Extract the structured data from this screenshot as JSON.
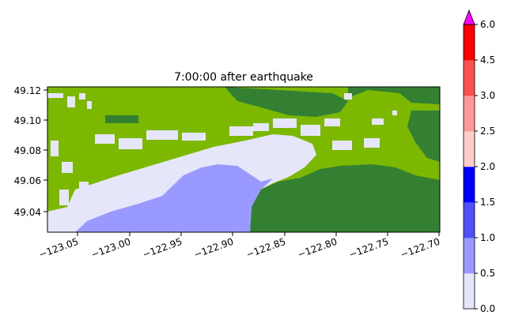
{
  "chart_data": {
    "type": "heatmap",
    "title": "7:00:00 after earthquake",
    "xlabel": "",
    "ylabel": "",
    "xlim": [
      -123.08,
      -122.7
    ],
    "ylim": [
      49.027,
      49.122
    ],
    "x_ticks": [
      -123.05,
      -123.0,
      -122.95,
      -122.9,
      -122.85,
      -122.8,
      -122.75,
      -122.7
    ],
    "x_tick_labels": [
      "−123.05",
      "−123.00",
      "−122.95",
      "−122.90",
      "−122.85",
      "−122.80",
      "−122.75",
      "−122.70"
    ],
    "y_ticks": [
      49.04,
      49.06,
      49.08,
      49.1,
      49.12
    ],
    "y_tick_labels": [
      "49.04",
      "49.06",
      "49.08",
      "49.10",
      "49.12"
    ],
    "colorbar": {
      "levels": [
        0.0,
        0.5,
        1.0,
        1.5,
        2.0,
        2.5,
        3.0,
        4.5,
        6.0
      ],
      "tick_labels": [
        "0.0",
        "0.5",
        "1.0",
        "1.5",
        "2.0",
        "2.5",
        "3.0",
        "4.5",
        "6.0"
      ],
      "colors": [
        "#e6e6fa",
        "#9999ff",
        "#5050ff",
        "#0000ff",
        "#ffcccc",
        "#ff9999",
        "#ff5050",
        "#ff0000"
      ],
      "extend_max_color": "#ff00ff",
      "extend": "max"
    },
    "land_colors": {
      "lowland": "#7cb800",
      "upland": "#338033"
    }
  }
}
